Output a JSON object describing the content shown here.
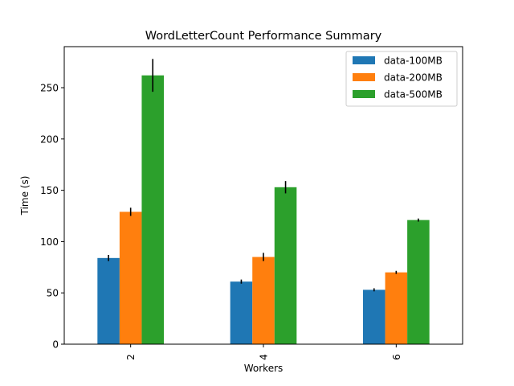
{
  "chart_data": {
    "type": "bar",
    "title": "WordLetterCount Performance Summary",
    "xlabel": "Workers",
    "ylabel": "Time (s)",
    "categories": [
      "2",
      "4",
      "6"
    ],
    "ylim": [
      0,
      290
    ],
    "yticks": [
      0,
      50,
      100,
      150,
      200,
      250
    ],
    "grid": false,
    "legend_position": "top-right",
    "series": [
      {
        "name": "data-100MB",
        "color": "#1f77b4",
        "values": [
          84,
          61,
          53
        ],
        "errors": [
          3,
          2,
          1.5
        ]
      },
      {
        "name": "data-200MB",
        "color": "#ff7f0e",
        "values": [
          129,
          85,
          70
        ],
        "errors": [
          4,
          4,
          1.5
        ]
      },
      {
        "name": "data-500MB",
        "color": "#2ca02c",
        "values": [
          262,
          153,
          121
        ],
        "errors": [
          16,
          6,
          1.5
        ]
      }
    ]
  }
}
